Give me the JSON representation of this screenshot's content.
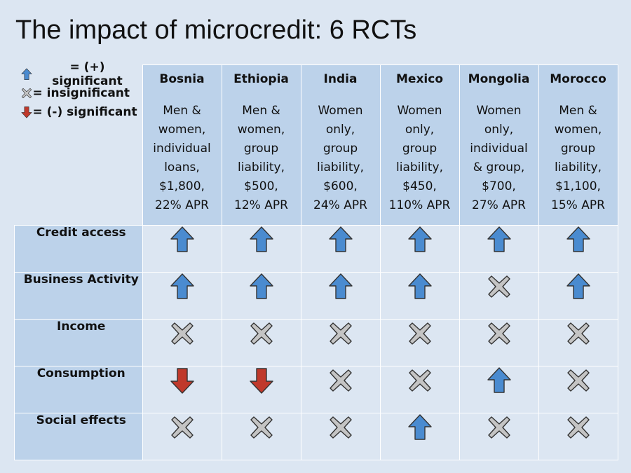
{
  "title": "The impact of microcredit: 6 RCTs",
  "legend": [
    {
      "icon": "up-arrow-icon",
      "label": "= (+) significant"
    },
    {
      "icon": "x-icon",
      "label": "= insignificant"
    },
    {
      "icon": "down-arrow-icon",
      "label": "= (-) significant"
    }
  ],
  "columns": [
    {
      "country": "Bosnia",
      "desc": [
        "Men &",
        "women,",
        "individual",
        "loans,",
        "$1,800,",
        "22% APR"
      ]
    },
    {
      "country": "Ethiopia",
      "desc": [
        "Men &",
        "women,",
        "group",
        "liability,",
        "$500,",
        "12% APR"
      ]
    },
    {
      "country": "India",
      "desc": [
        "Women",
        "only,",
        "group",
        "liability,",
        "$600,",
        "24% APR"
      ]
    },
    {
      "country": "Mexico",
      "desc": [
        "Women",
        "only,",
        "group",
        "liability,",
        "$450,",
        "110% APR"
      ]
    },
    {
      "country": "Mongolia",
      "desc": [
        "Women",
        "only,",
        "individual",
        "& group,",
        "$700,",
        "27% APR"
      ]
    },
    {
      "country": "Morocco",
      "desc": [
        "Men &",
        "women,",
        "group",
        "liability,",
        "$1,100,",
        "15% APR"
      ]
    }
  ],
  "rows": [
    {
      "label": "Credit access",
      "results": [
        "up",
        "up",
        "up",
        "up",
        "up",
        "up"
      ]
    },
    {
      "label": "Business Activity",
      "results": [
        "up",
        "up",
        "up",
        "up",
        "x",
        "up"
      ]
    },
    {
      "label": "Income",
      "results": [
        "x",
        "x",
        "x",
        "x",
        "x",
        "x"
      ]
    },
    {
      "label": "Consumption",
      "results": [
        "down",
        "down",
        "x",
        "x",
        "up",
        "x"
      ]
    },
    {
      "label": "Social effects",
      "results": [
        "x",
        "x",
        "x",
        "up",
        "x",
        "x"
      ]
    }
  ],
  "colors": {
    "up": "#4a8bd0",
    "down": "#c0392b",
    "x": "#c4c4c4",
    "outline": "#333333",
    "header_bg": "#bcd2ea",
    "body_bg": "#dce6f2"
  }
}
